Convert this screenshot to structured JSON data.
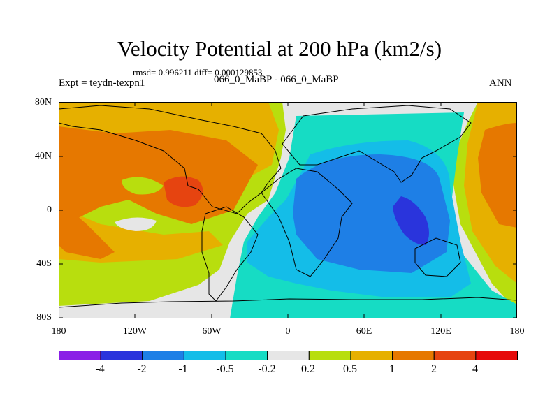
{
  "title": "Velocity Potential at 200 hPa (km2/s)",
  "stats": "rmsd= 0.996211 diff= 0.000129853",
  "left_label": "Expt = teydn-texpn1",
  "center_label": "066_0_MaBP - 066_0_MaBP",
  "right_label": "ANN",
  "lat_ticks": [
    "80N",
    "40N",
    "0",
    "40S",
    "80S"
  ],
  "lon_ticks": [
    "180",
    "120W",
    "60W",
    "0",
    "60E",
    "120E",
    "180"
  ],
  "colorbar": {
    "labels": [
      "-4",
      "-2",
      "-1",
      "-0.5",
      "-0.2",
      "0.2",
      "0.5",
      "1",
      "2",
      "4"
    ],
    "colors": [
      "#8a20e6",
      "#2a34dc",
      "#1e7fe6",
      "#14bde8",
      "#16dcc4",
      "#e6e6e6",
      "#b8de0e",
      "#e6b000",
      "#e67800",
      "#e64410",
      "#e60a0a"
    ]
  }
}
